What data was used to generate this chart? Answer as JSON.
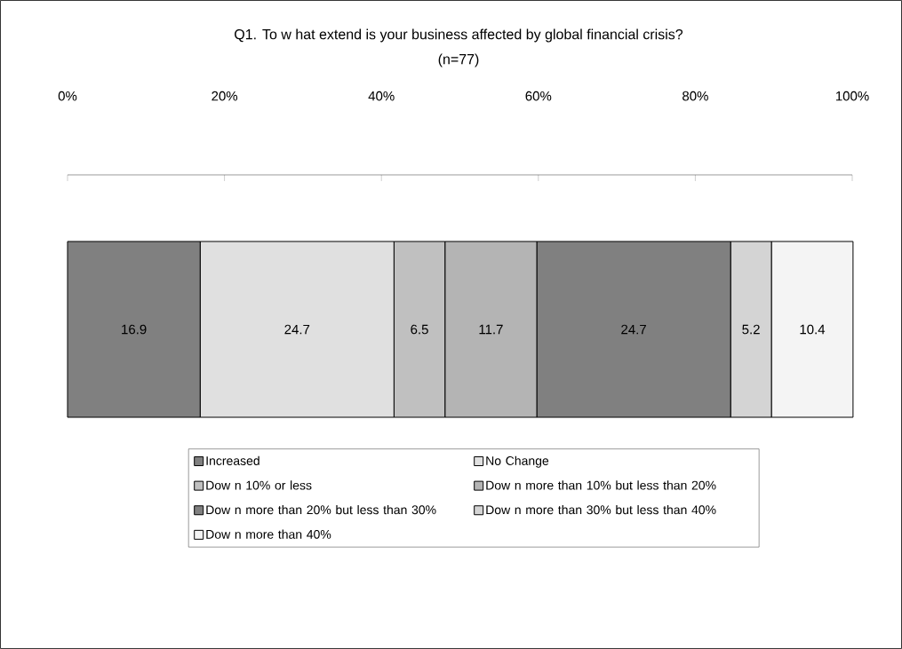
{
  "chart_data": {
    "type": "bar",
    "orientation": "horizontal",
    "stacked": true,
    "title": "Q1. To w hat extend is your business affected by global financial crisis?",
    "subtitle": "(n=77)",
    "categories": [
      null
    ],
    "series": [
      {
        "name": "Increased",
        "color": "#808080",
        "values": [
          16.9
        ]
      },
      {
        "name": "No Change",
        "color": "#e0e0e0",
        "values": [
          24.7
        ]
      },
      {
        "name": "Dow n 10% or less",
        "color": "#c0c0c0",
        "values": [
          6.5
        ]
      },
      {
        "name": "Dow n more than 10% but less than 20%",
        "color": "#b4b4b4",
        "values": [
          11.7
        ]
      },
      {
        "name": "Dow n more than 20% but less than 30%",
        "color": "#808080",
        "values": [
          24.7
        ]
      },
      {
        "name": "Dow n more than 30% but less than 40%",
        "color": "#d4d4d4",
        "values": [
          5.2
        ]
      },
      {
        "name": "Dow n more than 40%",
        "color": "#f4f4f4",
        "values": [
          10.4
        ]
      }
    ],
    "xlim": [
      0,
      100
    ],
    "xticks": [
      {
        "value": 0,
        "label": "0%"
      },
      {
        "value": 20,
        "label": "20%"
      },
      {
        "value": 40,
        "label": "40%"
      },
      {
        "value": 60,
        "label": "60%"
      },
      {
        "value": 80,
        "label": "80%"
      },
      {
        "value": 100,
        "label": "100%"
      }
    ],
    "data_labels": true,
    "tick_labels": "x",
    "legend": "bottom",
    "grid": false
  }
}
